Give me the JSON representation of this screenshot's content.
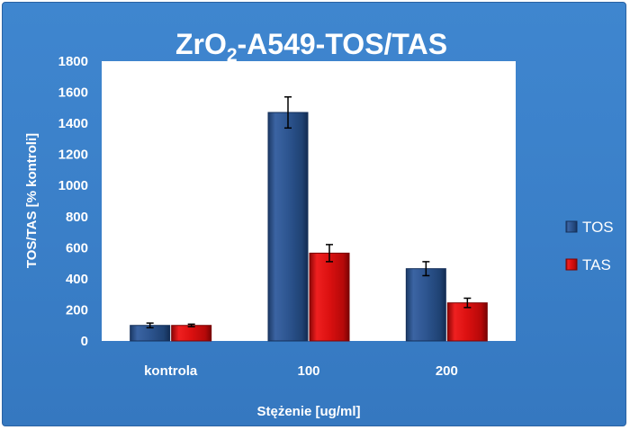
{
  "chart_data": {
    "type": "bar",
    "title_main": "ZrO",
    "title_sub": "2",
    "title_rest": "-A549-TOS/TAS",
    "xlabel": "Stężenie [ug/ml]",
    "ylabel": "TOS/TAS [% kontroli]",
    "ylim": [
      0,
      1800
    ],
    "yticks": [
      "0",
      "200",
      "400",
      "600",
      "800",
      "1000",
      "1200",
      "1400",
      "1600",
      "1800"
    ],
    "categories": [
      "kontrola",
      "100",
      "200"
    ],
    "series": [
      {
        "name": "TOS",
        "values": [
          100,
          1470,
          465
        ],
        "errors": [
          15,
          100,
          45
        ],
        "color": "#2b4f86"
      },
      {
        "name": "TAS",
        "values": [
          100,
          565,
          245
        ],
        "errors": [
          8,
          55,
          30
        ],
        "color": "#d90f0f"
      }
    ],
    "legend_position": "right",
    "grid": false,
    "plot_background": "#ffffff",
    "chart_background": "#3b80c9"
  }
}
